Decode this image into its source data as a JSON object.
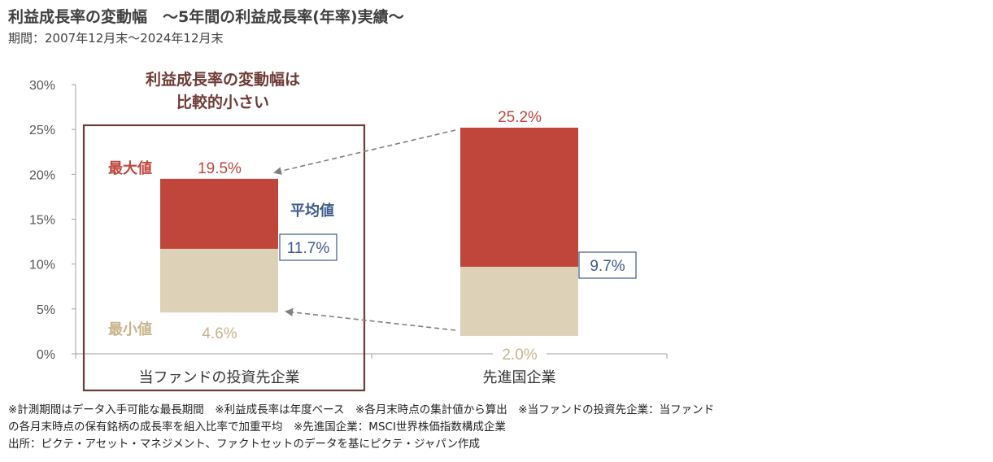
{
  "title": "利益成長率の変動幅　～5年間の利益成長率(年率)実績～",
  "period": "期間：2007年12月末～2024年12月末",
  "chart_data": {
    "type": "bar",
    "subtype": "floating-range",
    "categories": [
      "当ファンドの投資先企業",
      "先進国企業"
    ],
    "ylim": [
      0,
      30
    ],
    "yticks": [
      "0%",
      "5%",
      "10%",
      "15%",
      "20%",
      "25%",
      "30%"
    ],
    "grid": false,
    "series": [
      {
        "name": "最大値",
        "values": [
          19.5,
          25.2
        ],
        "labels": [
          "19.5%",
          "25.2%"
        ],
        "color": "#c0463c"
      },
      {
        "name": "平均値",
        "values": [
          11.7,
          9.7
        ],
        "labels": [
          "11.7%",
          "9.7%"
        ],
        "color": "#3d5a8c"
      },
      {
        "name": "最小値",
        "values": [
          4.6,
          2.0
        ],
        "labels": [
          "4.6%",
          "2.0%"
        ],
        "color": "#ddd2b8"
      }
    ],
    "annotations": {
      "highlight_line1": "利益成長率の変動幅は",
      "highlight_line2": "比較的小さい",
      "highlight_color": "#6e3b36",
      "label_max": "最大値",
      "label_avg": "平均値",
      "label_min": "最小値"
    }
  },
  "footnotes": {
    "line1": "※計測期間はデータ入手可能な最長期間　※利益成長率は年度ベース　※各月末時点の集計値から算出　※当ファンドの投資先企業：当ファンド",
    "line2": "の各月末時点の保有銘柄の成長率を組入比率で加重平均　※先進国企業：MSCI世界株価指数構成企業",
    "line3": "出所：ピクテ・アセット・マネジメント、ファクトセットのデータを基にピクテ・ジャパン作成"
  }
}
